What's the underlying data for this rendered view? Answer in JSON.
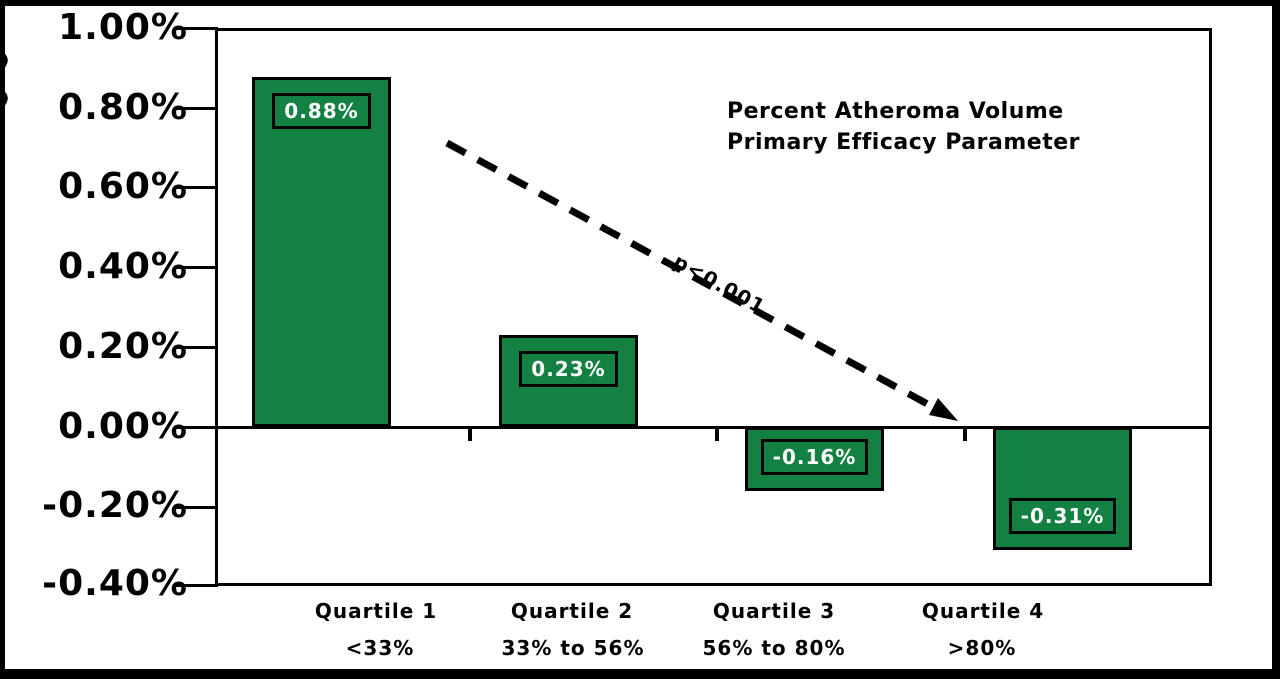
{
  "frame": {
    "background": "#ffffff",
    "border_color": "#000000"
  },
  "chart_data": {
    "type": "bar",
    "annotation_lines": [
      "Percent Atheroma Volume",
      "Primary Efficacy Parameter"
    ],
    "categories": [
      "Quartile 1",
      "Quartile 2",
      "Quartile 3",
      "Quartile 4"
    ],
    "category_ranges": [
      "<33%",
      "33% to 56%",
      "56% to 80%",
      ">80%"
    ],
    "values": [
      0.88,
      0.23,
      -0.16,
      -0.31
    ],
    "bar_value_labels": [
      "0.88%",
      "0.23%",
      "-0.16%",
      "-0.31%"
    ],
    "y_tick_labels": [
      "1.00%",
      "0.80%",
      "0.60%",
      "0.40%",
      "0.20%",
      "0.00%",
      "-0.20%",
      "-0.40%"
    ],
    "ylim": [
      -0.4,
      1.0
    ],
    "y_unit": "percent",
    "p_value_label": "p<0.001",
    "bar_color": "#128142",
    "bar_border_color": "#000000",
    "value_label_text_color": "#ffffff",
    "trend": "dashed black arrow descending from above Quartile 1 to the zero baseline at Quartile 4",
    "grid": false,
    "legend": "none"
  }
}
